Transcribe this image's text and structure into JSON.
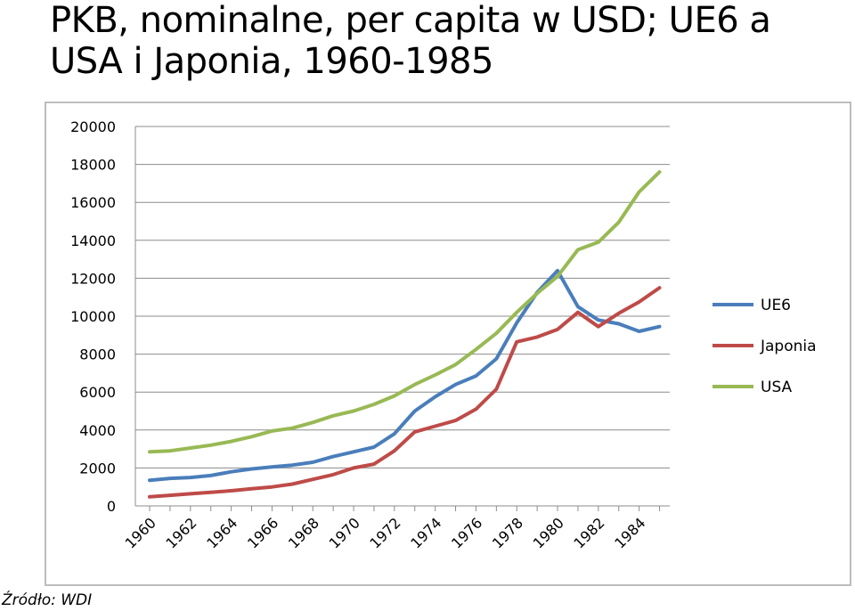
{
  "title": "PKB, nominalne, per capita w USD; UE6 a USA i Japonia, 1960-1985",
  "source": "Źródło: WDI",
  "chart_data": {
    "type": "line",
    "title": "",
    "xlabel": "",
    "ylabel": "",
    "x": [
      1960,
      1961,
      1962,
      1963,
      1964,
      1965,
      1966,
      1967,
      1968,
      1969,
      1970,
      1971,
      1972,
      1973,
      1974,
      1975,
      1976,
      1977,
      1978,
      1979,
      1980,
      1981,
      1982,
      1983,
      1984,
      1985
    ],
    "x_tick_labels": [
      "1960",
      "1962",
      "1964",
      "1966",
      "1968",
      "1970",
      "1972",
      "1974",
      "1976",
      "1978",
      "1980",
      "1982",
      "1984"
    ],
    "ylim": [
      0,
      20000
    ],
    "y_tick_labels": [
      "0",
      "2000",
      "4000",
      "6000",
      "8000",
      "10000",
      "12000",
      "14000",
      "16000",
      "18000",
      "20000"
    ],
    "grid": "horizontal",
    "legend": "right",
    "series": [
      {
        "name": "UE6",
        "color": "#4a7ebb",
        "values": [
          1350,
          1450,
          1500,
          1600,
          1800,
          1950,
          2050,
          2150,
          2300,
          2600,
          2850,
          3100,
          3800,
          5000,
          5750,
          6400,
          6850,
          7750,
          9650,
          11250,
          12400,
          10500,
          9800,
          9600,
          9200,
          9450
        ]
      },
      {
        "name": "Japonia",
        "color": "#be4b48",
        "values": [
          480,
          560,
          640,
          720,
          800,
          900,
          1000,
          1150,
          1400,
          1650,
          2000,
          2200,
          2900,
          3900,
          4200,
          4500,
          5100,
          6150,
          8650,
          8900,
          9300,
          10200,
          9450,
          10150,
          10750,
          11500
        ]
      },
      {
        "name": "USA",
        "color": "#98b954",
        "values": [
          2850,
          2900,
          3050,
          3200,
          3400,
          3650,
          3950,
          4100,
          4400,
          4750,
          5000,
          5350,
          5800,
          6400,
          6900,
          7450,
          8250,
          9100,
          10200,
          11200,
          12100,
          13500,
          13900,
          14950,
          16550,
          17600
        ]
      }
    ]
  }
}
